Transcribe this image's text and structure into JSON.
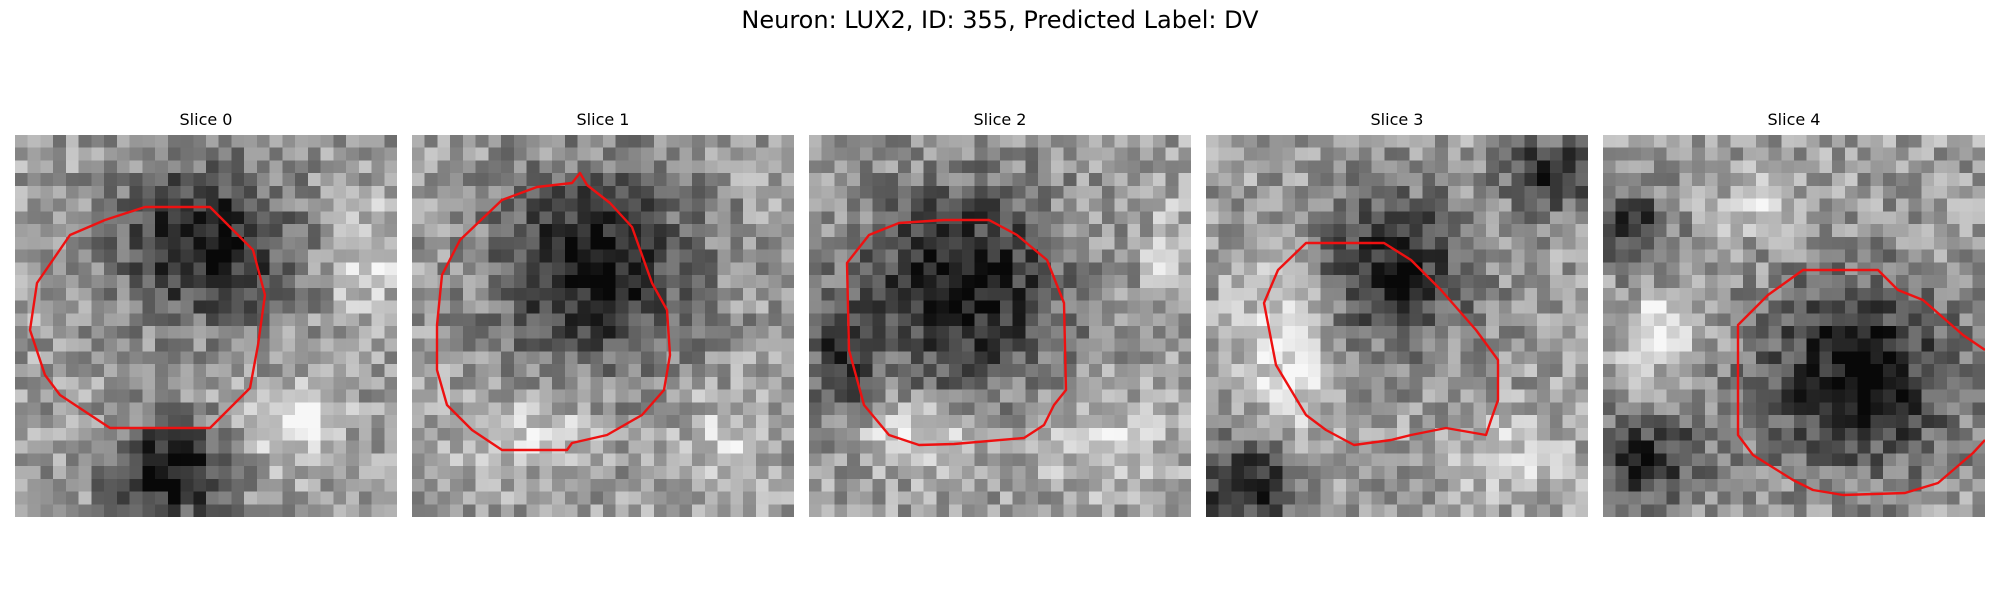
{
  "figure": {
    "title": "Neuron: LUX2, ID: 355, Predicted Label: DV"
  },
  "panels": [
    {
      "title": "Slice 0"
    },
    {
      "title": "Slice 1"
    },
    {
      "title": "Slice 2"
    },
    {
      "title": "Slice 3"
    },
    {
      "title": "Slice 4"
    }
  ],
  "colors": {
    "contour": "#ee1111",
    "background": "#ffffff",
    "image_colormap": "grayscale"
  }
}
